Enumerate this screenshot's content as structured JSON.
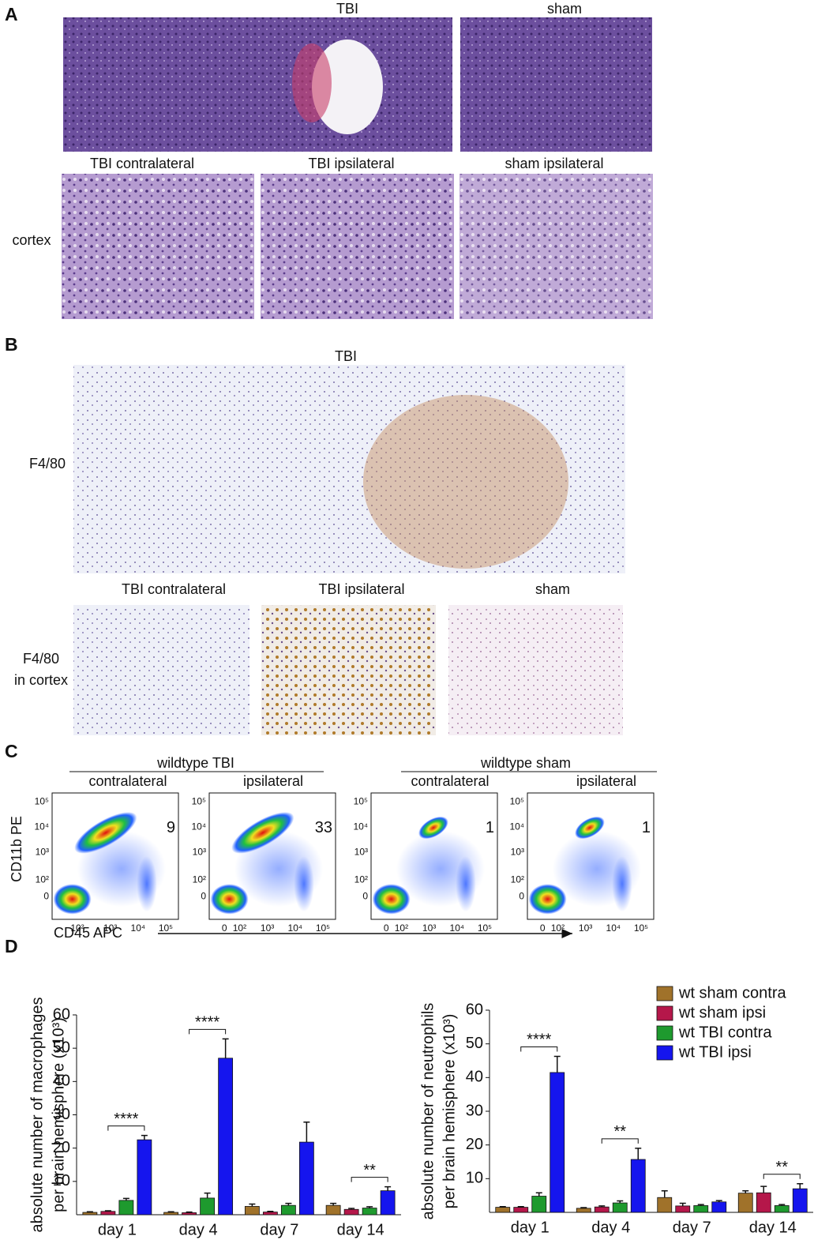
{
  "panel_a": {
    "label": "A",
    "top_titles": [
      "TBI",
      "sham"
    ],
    "sub_titles": [
      "TBI contralateral",
      "TBI ipsilateral",
      "sham ipsilateral"
    ],
    "row_label": "cortex"
  },
  "panel_b": {
    "label": "B",
    "top_title": "TBI",
    "top_row_label": "F4/80",
    "sub_titles": [
      "TBI contralateral",
      "TBI ipsilateral",
      "sham"
    ],
    "row_label": [
      "F4/80",
      "in cortex"
    ]
  },
  "panel_c": {
    "label": "C",
    "groups": [
      "wildtype TBI",
      "wildtype sham"
    ],
    "y_axis_label": "CD11b PE",
    "x_axis_label": "CD45 APC",
    "plots": [
      {
        "title": "contralateral",
        "percent": 9,
        "yticks": [
          "10⁵",
          "10⁴",
          "10³",
          "10²",
          "0"
        ],
        "xticks": [
          "10²",
          "10³",
          "10⁴",
          "10⁵"
        ]
      },
      {
        "title": "ipsilateral",
        "percent": 33,
        "yticks": [
          "10⁵",
          "10⁴",
          "10³",
          "10²",
          "0"
        ],
        "xticks": [
          "0",
          "10²",
          "10³",
          "10⁴",
          "10⁵"
        ]
      },
      {
        "title": "contralateral",
        "percent": 1,
        "yticks": [
          "10⁵",
          "10⁴",
          "10³",
          "10²",
          "0"
        ],
        "xticks": [
          "0",
          "10²",
          "10³",
          "10⁴",
          "10⁵"
        ]
      },
      {
        "title": "ipsilateral",
        "percent": 1,
        "yticks": [
          "10⁵",
          "10⁴",
          "10³",
          "10²",
          "0"
        ],
        "xticks": [
          "0",
          "10²",
          "10³",
          "10⁴",
          "10⁵"
        ]
      }
    ]
  },
  "panel_d": {
    "label": "D"
  },
  "chart_data": [
    {
      "type": "bar",
      "y_label": [
        "absolute number of macrophages",
        "per brain hemisphere (x10³)"
      ],
      "categories": [
        "day 1",
        "day 4",
        "day 7",
        "day 14"
      ],
      "ylim": [
        0,
        60
      ],
      "yticks": [
        10,
        20,
        30,
        40,
        50,
        60
      ],
      "series": [
        {
          "name": "wt sham contra",
          "color": "#a0722a",
          "values": [
            0.7,
            0.7,
            2.5,
            2.8
          ],
          "errors": [
            0.2,
            0.2,
            0.7,
            0.6
          ]
        },
        {
          "name": "wt sham ipsi",
          "color": "#b5174a",
          "values": [
            1.0,
            0.6,
            0.8,
            1.6
          ],
          "errors": [
            0.2,
            0.2,
            0.2,
            0.3
          ]
        },
        {
          "name": "wt TBI contra",
          "color": "#1e9a2e",
          "values": [
            4.3,
            5.0,
            2.8,
            2.0
          ],
          "errors": [
            0.6,
            1.5,
            0.6,
            0.4
          ]
        },
        {
          "name": "wt TBI ipsi",
          "color": "#1515ee",
          "values": [
            22.5,
            47.0,
            21.8,
            7.2
          ],
          "errors": [
            1.3,
            5.8,
            6.0,
            1.2
          ]
        }
      ],
      "annotations": [
        {
          "text": "****",
          "category": "day 1"
        },
        {
          "text": "****",
          "category": "day 4"
        },
        {
          "text": "**",
          "category": "day 14"
        }
      ]
    },
    {
      "type": "bar",
      "y_label": [
        "absolute number of neutrophils",
        "per brain hemisphere (x10³)"
      ],
      "categories": [
        "day 1",
        "day 4",
        "day 7",
        "day 14"
      ],
      "ylim": [
        0,
        60
      ],
      "yticks": [
        10,
        20,
        30,
        40,
        50,
        60
      ],
      "legend": "upper right",
      "series": [
        {
          "name": "wt sham contra",
          "color": "#a0722a",
          "values": [
            1.5,
            1.2,
            4.4,
            5.7
          ],
          "errors": [
            0.2,
            0.2,
            2.0,
            0.7
          ]
        },
        {
          "name": "wt sham ipsi",
          "color": "#b5174a",
          "values": [
            1.5,
            1.6,
            1.9,
            5.8
          ],
          "errors": [
            0.2,
            0.3,
            0.8,
            1.9
          ]
        },
        {
          "name": "wt TBI contra",
          "color": "#1e9a2e",
          "values": [
            4.8,
            2.8,
            2.0,
            2.0
          ],
          "errors": [
            1.0,
            0.6,
            0.3,
            0.3
          ]
        },
        {
          "name": "wt TBI ipsi",
          "color": "#1515ee",
          "values": [
            41.5,
            15.7,
            3.1,
            7.0
          ],
          "errors": [
            4.8,
            3.3,
            0.4,
            1.5
          ]
        }
      ],
      "annotations": [
        {
          "text": "****",
          "category": "day 1"
        },
        {
          "text": "**",
          "category": "day 4"
        },
        {
          "text": "**",
          "category": "day 14"
        }
      ]
    }
  ]
}
